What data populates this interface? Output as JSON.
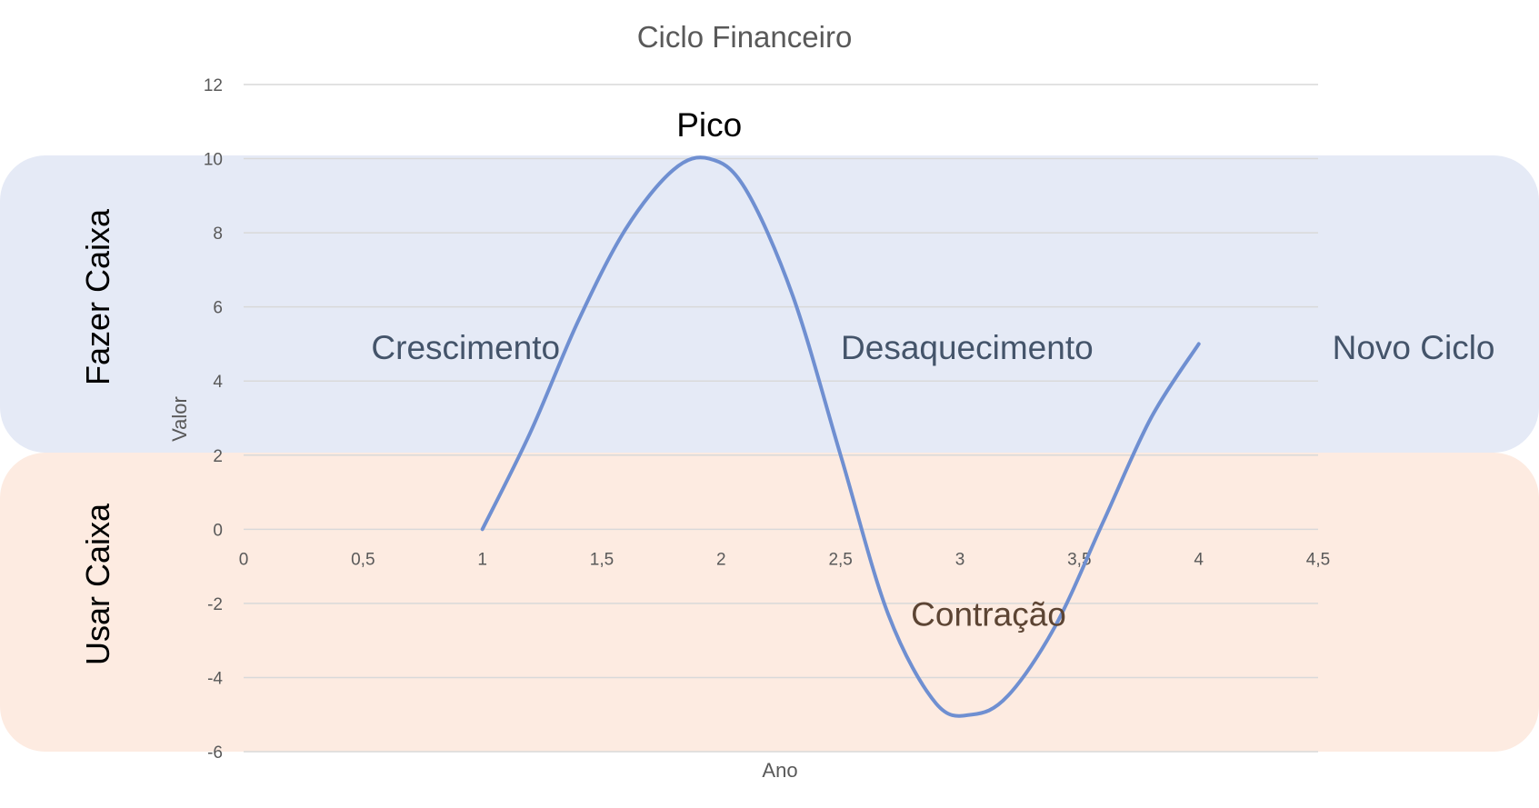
{
  "colors": {
    "series": "#6f8fd1",
    "grid": "#d9d9d9",
    "band_top": "#e5eaf6",
    "band_bottom": "#fdebe1",
    "tick_text": "#595959",
    "phase_text": "#44546a",
    "contracao_text": "#5c4433",
    "pico_text": "#000000"
  },
  "chart_data": {
    "type": "line",
    "title": "Ciclo Financeiro",
    "xlabel": "Ano",
    "ylabel": "Valor",
    "xlim": [
      0,
      4.5
    ],
    "ylim": [
      -6,
      12
    ],
    "x_ticks": [
      "0",
      "0,5",
      "1",
      "1,5",
      "2",
      "2,5",
      "3",
      "3,5",
      "4",
      "4,5"
    ],
    "y_ticks": [
      "12",
      "10",
      "8",
      "6",
      "4",
      "2",
      "0",
      "-2",
      "-4",
      "-6"
    ],
    "grid": true,
    "series": [
      {
        "x": [
          1,
          1.2,
          1.4,
          1.6,
          1.8,
          1.95,
          2.1,
          2.3,
          2.5,
          2.7,
          2.9,
          3.05,
          3.2,
          3.4,
          3.6,
          3.8,
          4
        ],
        "y": [
          0,
          2.6,
          5.6,
          8.1,
          9.7,
          10,
          9.2,
          6.3,
          2,
          -2.3,
          -4.7,
          -5,
          -4.5,
          -2.6,
          0.2,
          3,
          5
        ]
      }
    ],
    "bands": [
      {
        "label": "Fazer Caixa"
      },
      {
        "label": "Usar Caixa"
      }
    ],
    "annotations": [
      {
        "text": "Pico",
        "x": 1.95,
        "y": 10.6
      },
      {
        "text": "Crescimento",
        "x": 0.93,
        "y": 4.6
      },
      {
        "text": "Desaquecimento",
        "x": 3.03,
        "y": 4.6
      },
      {
        "text": "Contração",
        "x": 3.12,
        "y": -2.6
      },
      {
        "text": "Novo Ciclo",
        "x": 4.9,
        "y": 4.6
      }
    ]
  }
}
